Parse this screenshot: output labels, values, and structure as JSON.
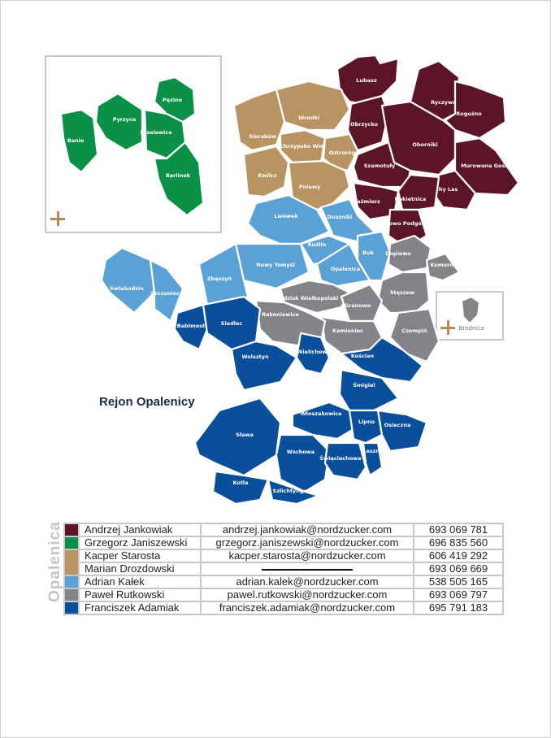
{
  "title": "Rejon Opalenicy",
  "side_label": "Opalenica",
  "colors": {
    "maroon": "#5c1526",
    "green": "#0a9047",
    "tan": "#b99463",
    "lightblue": "#5aa2d6",
    "gray": "#838487",
    "blue": "#0a4f9c",
    "accent": "#b08d57"
  },
  "regions": {
    "maroon": [
      "Lubasz",
      "Obrzycko",
      "Ryczywół",
      "Rogoźno",
      "Oborniki",
      "Murowana Goślina",
      "Suchy Las",
      "Szamotuły",
      "Kaźmierz",
      "Rokietnica",
      "Tarnowo Podgórne"
    ],
    "tan": [
      "Wronki",
      "Sieraków",
      "Chrzypsko Wielkie",
      "Ostroróg",
      "Kwilcz",
      "Pniewy"
    ],
    "lightblue": [
      "Lwówek",
      "Duszniki",
      "Kuślin",
      "Nowy Tomyśl",
      "Zbąszyń",
      "Opalenica",
      "Buk",
      "Świebodzin",
      "Szczaniec"
    ],
    "gray": [
      "Dopiewo",
      "Komorniki",
      "Stęszew",
      "Czempiń",
      "Grodzisk Wielkopolski",
      "Granowo",
      "Kamieniec",
      "Rakoniewice"
    ],
    "blue": [
      "Babimost",
      "Siedlec",
      "Wolsztyn",
      "Wielichowo",
      "Kościan",
      "Śmigiel",
      "Sława",
      "Kotla",
      "Włoszakowice",
      "Wschowa",
      "Szlichtyngowa",
      "Lipno",
      "Osieczna",
      "Święciechowa",
      "Leszno"
    ],
    "green_inset": [
      "Banie",
      "Pyrzyce",
      "Pęzino",
      "Przelewice",
      "Barlinek"
    ],
    "gray_inset": [
      "Brodnica"
    ]
  },
  "contacts": [
    {
      "color": "maroon",
      "name": "Andrzej Jankowiak",
      "email": "andrzej.jankowiak@nordzucker.com",
      "phone": "693 069 781"
    },
    {
      "color": "green",
      "name": "Grzegorz Janiszewski",
      "email": "grzegorz.janiszewski@nordzucker.com",
      "phone": "696 835 560"
    },
    {
      "color": "tan",
      "name": "Kacper Starosta",
      "email": "kacper.starosta@nordzucker.com",
      "phone": "606 419 292"
    },
    {
      "color": "tan",
      "name": "Marian Drozdowski",
      "email": "",
      "phone": "693 069 669"
    },
    {
      "color": "lightblue",
      "name": "Adrian Kałek",
      "email": "adrian.kalek@nordzucker.com",
      "phone": "538 505 165"
    },
    {
      "color": "gray",
      "name": "Paweł Rutkowski",
      "email": "pawel.rutkowski@nordzucker.com",
      "phone": "693 069 797"
    },
    {
      "color": "blue",
      "name": "Franciszek Adamiak",
      "email": "franciszek.adamiak@nordzucker.com",
      "phone": "695 791 183"
    }
  ]
}
